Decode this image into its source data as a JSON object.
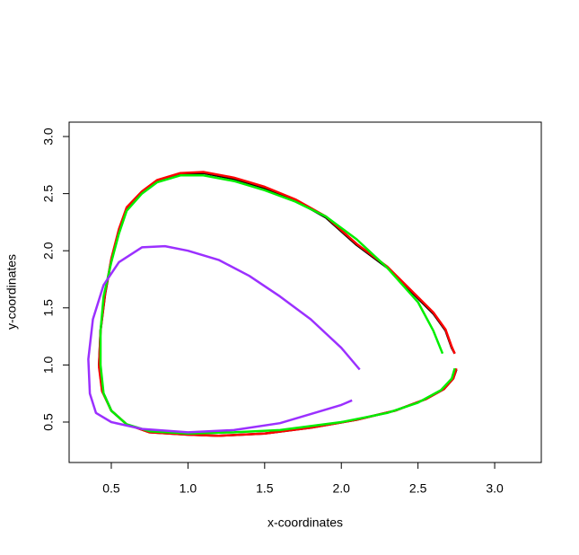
{
  "chart_data": {
    "type": "line",
    "x_label": "x-coordinates",
    "y_label": "y-coordinates",
    "xlim": [
      0.225,
      3.304
    ],
    "ylim": [
      0.146,
      3.126
    ],
    "xticks": [
      0.5,
      {
        "value": 1,
        "label": "1.0"
      },
      1.5,
      {
        "value": 2,
        "label": "2.0"
      },
      2.5,
      {
        "value": 3,
        "label": "3.0"
      }
    ],
    "yticks": [
      0.5,
      {
        "value": 1,
        "label": "1.0"
      },
      1.5,
      {
        "value": 2,
        "label": "2.0"
      },
      2.5,
      {
        "value": 3,
        "label": "3.0"
      }
    ],
    "grid": false,
    "series": [
      {
        "color": "#000000",
        "x": [
          2.74,
          2.72,
          2.68,
          2.6,
          2.45,
          2.3,
          2.1,
          1.9,
          1.7,
          1.5,
          1.3,
          1.1,
          0.95,
          0.8,
          0.7,
          0.6,
          0.55,
          0.5,
          0.46,
          0.43,
          0.42,
          0.44,
          0.5,
          0.6,
          0.75,
          1.0,
          1.2,
          1.5,
          1.8,
          2.1,
          2.35,
          2.55,
          2.67,
          2.73,
          2.75
        ],
        "y": [
          1.1,
          1.15,
          1.3,
          1.45,
          1.65,
          1.85,
          2.05,
          2.29,
          2.44,
          2.55,
          2.63,
          2.68,
          2.67,
          2.61,
          2.51,
          2.37,
          2.18,
          1.92,
          1.62,
          1.3,
          1.0,
          0.78,
          0.6,
          0.48,
          0.41,
          0.39,
          0.38,
          0.4,
          0.45,
          0.52,
          0.6,
          0.7,
          0.79,
          0.88,
          0.96
        ]
      },
      {
        "color": "#ff0000",
        "x": [
          2.74,
          2.72,
          2.68,
          2.6,
          2.45,
          2.3,
          2.1,
          1.9,
          1.7,
          1.5,
          1.3,
          1.1,
          0.95,
          0.8,
          0.7,
          0.6,
          0.55,
          0.5,
          0.46,
          0.43,
          0.42,
          0.44,
          0.5,
          0.6,
          0.75,
          1.0,
          1.2,
          1.5,
          1.8,
          2.1,
          2.35,
          2.55,
          2.67,
          2.73,
          2.75
        ],
        "y": [
          1.1,
          1.16,
          1.31,
          1.46,
          1.66,
          1.86,
          2.06,
          2.3,
          2.45,
          2.56,
          2.64,
          2.69,
          2.68,
          2.62,
          2.52,
          2.38,
          2.19,
          1.93,
          1.63,
          1.3,
          0.98,
          0.77,
          0.6,
          0.48,
          0.41,
          0.39,
          0.38,
          0.4,
          0.45,
          0.52,
          0.6,
          0.7,
          0.79,
          0.88,
          0.97
        ]
      },
      {
        "color": "#00ee00",
        "x": [
          2.66,
          2.6,
          2.5,
          2.3,
          2.1,
          1.9,
          1.7,
          1.5,
          1.3,
          1.1,
          0.95,
          0.8,
          0.7,
          0.6,
          0.55,
          0.5,
          0.45,
          0.43,
          0.43,
          0.45,
          0.5,
          0.6,
          0.75,
          1.0,
          1.3,
          1.6,
          2.0,
          2.3,
          2.5,
          2.65,
          2.72,
          2.74
        ],
        "y": [
          1.1,
          1.3,
          1.55,
          1.85,
          2.1,
          2.3,
          2.43,
          2.53,
          2.61,
          2.66,
          2.66,
          2.6,
          2.5,
          2.35,
          2.15,
          1.9,
          1.6,
          1.3,
          1.0,
          0.75,
          0.6,
          0.48,
          0.42,
          0.4,
          0.41,
          0.43,
          0.5,
          0.58,
          0.67,
          0.78,
          0.88,
          0.97
        ]
      },
      {
        "color": "#9b30ff",
        "x": [
          2.12,
          2.0,
          1.8,
          1.6,
          1.4,
          1.2,
          1.0,
          0.85,
          0.7,
          0.55,
          0.45,
          0.38,
          0.35,
          0.36,
          0.4,
          0.5,
          0.7,
          1.0,
          1.3,
          1.6,
          1.8,
          2.0,
          2.07
        ],
        "y": [
          0.96,
          1.15,
          1.4,
          1.6,
          1.78,
          1.92,
          2.0,
          2.04,
          2.03,
          1.9,
          1.7,
          1.4,
          1.05,
          0.75,
          0.58,
          0.5,
          0.44,
          0.41,
          0.43,
          0.49,
          0.57,
          0.65,
          0.69
        ]
      }
    ]
  }
}
